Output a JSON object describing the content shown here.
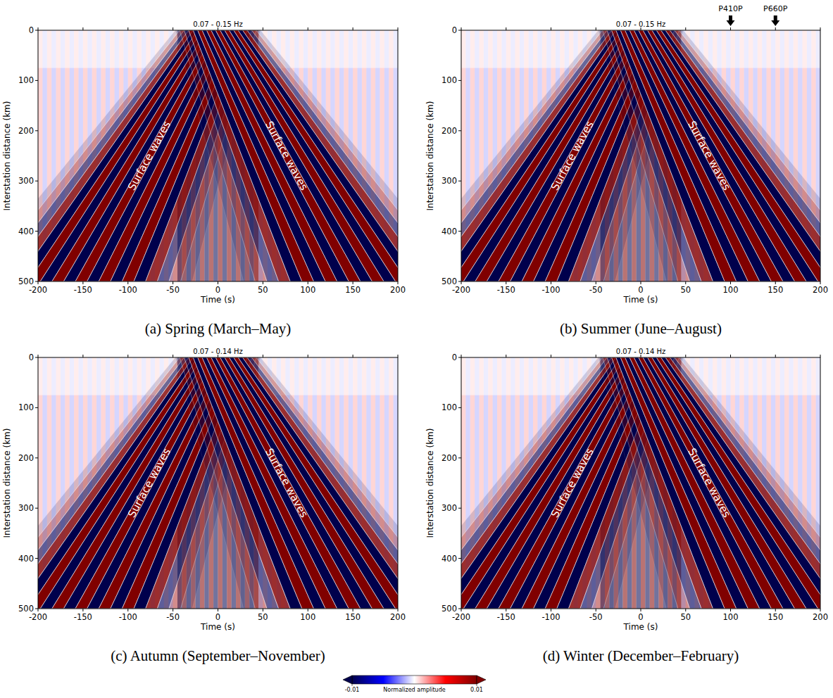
{
  "chart_data": [
    {
      "type": "record_section",
      "title": "0.07 - 0.15 Hz",
      "caption": "(a) Spring (March–May)",
      "x_label": "Time (s)",
      "y_label": "Interstation distance (km)",
      "xlim": [
        -200,
        200
      ],
      "ylim": [
        500,
        0
      ],
      "xticks": [
        -200,
        -150,
        -100,
        -50,
        0,
        50,
        100,
        150,
        200
      ],
      "yticks": [
        0,
        100,
        200,
        300,
        400,
        500
      ],
      "series": [
        {
          "name": "Surface waves",
          "x": [
            0,
            -152
          ],
          "values": [
            0,
            500
          ]
        },
        {
          "name": "Surface waves",
          "x": [
            0,
            152
          ],
          "values": [
            0,
            500
          ]
        }
      ]
    },
    {
      "type": "record_section",
      "title": "0.07 - 0.15 Hz",
      "caption": "(b) Summer (June–August)",
      "x_label": "Time (s)",
      "y_label": "Interstation distance (km)",
      "xlim": [
        -200,
        200
      ],
      "ylim": [
        500,
        0
      ],
      "xticks": [
        -200,
        -150,
        -100,
        -50,
        0,
        50,
        100,
        150,
        200
      ],
      "yticks": [
        0,
        100,
        200,
        300,
        400,
        500
      ],
      "series": [
        {
          "name": "Surface waves",
          "x": [
            0,
            -152
          ],
          "values": [
            0,
            500
          ]
        },
        {
          "name": "Surface waves",
          "x": [
            0,
            152
          ],
          "values": [
            0,
            500
          ]
        }
      ],
      "annotations": [
        {
          "text": "P410P",
          "x": 100
        },
        {
          "text": "P660P",
          "x": 150
        }
      ]
    },
    {
      "type": "record_section",
      "title": "0.07 - 0.14 Hz",
      "caption": "(c) Autumn (September–November)",
      "x_label": "Time (s)",
      "y_label": "Interstation distance (km)",
      "xlim": [
        -200,
        200
      ],
      "ylim": [
        500,
        0
      ],
      "xticks": [
        -200,
        -150,
        -100,
        -50,
        0,
        50,
        100,
        150,
        200
      ],
      "yticks": [
        0,
        100,
        200,
        300,
        400,
        500
      ],
      "series": [
        {
          "name": "Surface waves",
          "x": [
            0,
            -152
          ],
          "values": [
            0,
            500
          ]
        },
        {
          "name": "Surface waves",
          "x": [
            0,
            152
          ],
          "values": [
            0,
            500
          ]
        }
      ]
    },
    {
      "type": "record_section",
      "title": "0.07 - 0.14 Hz",
      "caption": "(d) Winter (December–February)",
      "x_label": "Time (s)",
      "y_label": "Interstation distance (km)",
      "xlim": [
        -200,
        200
      ],
      "ylim": [
        500,
        0
      ],
      "xticks": [
        -200,
        -150,
        -100,
        -50,
        0,
        50,
        100,
        150,
        200
      ],
      "yticks": [
        0,
        100,
        200,
        300,
        400,
        500
      ],
      "series": [
        {
          "name": "Surface waves",
          "x": [
            0,
            -152
          ],
          "values": [
            0,
            500
          ]
        },
        {
          "name": "Surface waves",
          "x": [
            0,
            152
          ],
          "values": [
            0,
            500
          ]
        }
      ]
    }
  ],
  "colorbar": {
    "label": "Normalized amplitude",
    "range": [
      -0.01,
      0.01
    ],
    "ticks": [
      -0.01,
      0.01
    ],
    "colors": [
      "#00004c",
      "#0000ff",
      "#ffffff",
      "#ff0000",
      "#800000"
    ]
  }
}
